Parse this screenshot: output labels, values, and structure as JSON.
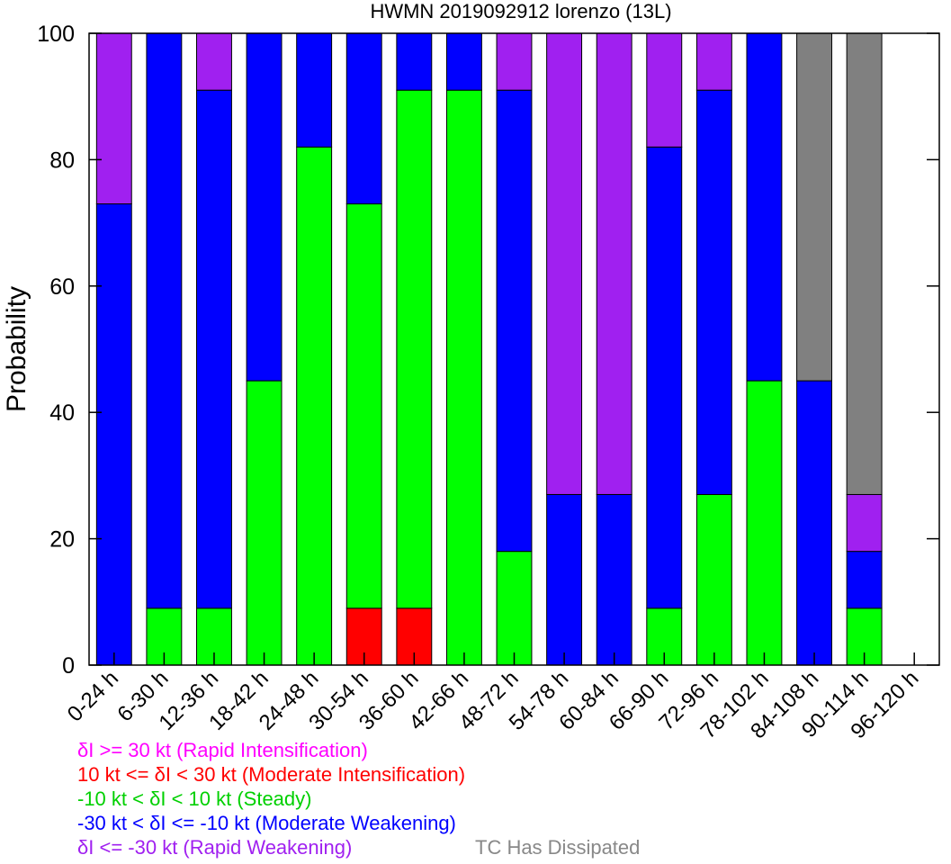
{
  "chart_data": {
    "type": "bar",
    "stacked": true,
    "title": "HWMN 2019092912 lorenzo (13L)",
    "ylabel": "Probability",
    "ylim": [
      0,
      100
    ],
    "yticks": [
      "0",
      "20",
      "40",
      "60",
      "80",
      "100"
    ],
    "grid": false,
    "categories": [
      "0-24 h",
      "6-30 h",
      "12-36 h",
      "18-42 h",
      "24-48 h",
      "30-54 h",
      "36-60 h",
      "42-66 h",
      "48-72 h",
      "54-78 h",
      "60-84 h",
      "66-90 h",
      "72-96 h",
      "78-102 h",
      "84-108 h",
      "90-114 h",
      "96-120 h"
    ],
    "series": [
      {
        "name": "δI >= 30 kt (Rapid Intensification)",
        "color": "#ff00ff",
        "values": [
          0,
          0,
          0,
          0,
          0,
          0,
          0,
          0,
          0,
          0,
          0,
          0,
          0,
          0,
          0,
          0,
          0
        ]
      },
      {
        "name": "10 kt <= δI < 30 kt (Moderate Intensification)",
        "color": "#ff0000",
        "values": [
          0,
          0,
          0,
          0,
          0,
          9,
          9,
          0,
          0,
          0,
          0,
          0,
          0,
          0,
          0,
          0,
          0
        ]
      },
      {
        "name": "-10 kt < δI < 10 kt (Steady)",
        "color": "#00ff00",
        "values": [
          0,
          9,
          9,
          45,
          82,
          64,
          82,
          91,
          18,
          0,
          0,
          9,
          27,
          45,
          0,
          9,
          0
        ]
      },
      {
        "name": "-30 kt < δI <= -10 kt (Moderate Weakening)",
        "color": "#0000ff",
        "values": [
          73,
          91,
          82,
          55,
          18,
          27,
          9,
          9,
          73,
          27,
          27,
          73,
          64,
          55,
          45,
          9,
          0
        ]
      },
      {
        "name": "δI <= -30 kt (Rapid Weakening)",
        "color": "#a020f0",
        "values": [
          27,
          0,
          9,
          0,
          0,
          0,
          0,
          0,
          9,
          73,
          73,
          18,
          9,
          0,
          0,
          9,
          0
        ]
      },
      {
        "name": "TC Has Dissipated",
        "color": "#808080",
        "values": [
          0,
          0,
          0,
          0,
          0,
          0,
          0,
          0,
          0,
          0,
          0,
          0,
          0,
          0,
          55,
          73,
          0
        ]
      }
    ],
    "legend": {
      "placement": "bottom-left",
      "entries": [
        {
          "label": "δI >= 30 kt (Rapid Intensification)",
          "color": "#ff00ff"
        },
        {
          "label": "10 kt <= δI < 30 kt (Moderate Intensification)",
          "color": "#ff0000"
        },
        {
          "label": "-10 kt < δI < 10 kt (Steady)",
          "color": "#00ff00"
        },
        {
          "label": "-30 kt < δI <= -10 kt (Moderate Weakening)",
          "color": "#0000ff"
        },
        {
          "label": "δI <= -30 kt (Rapid Weakening)",
          "color": "#a020f0"
        }
      ],
      "dissipated_label": "TC Has Dissipated"
    }
  }
}
